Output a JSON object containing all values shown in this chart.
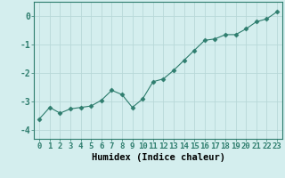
{
  "x": [
    0,
    1,
    2,
    3,
    4,
    5,
    6,
    7,
    8,
    9,
    10,
    11,
    12,
    13,
    14,
    15,
    16,
    17,
    18,
    19,
    20,
    21,
    22,
    23
  ],
  "y": [
    -3.6,
    -3.2,
    -3.4,
    -3.25,
    -3.2,
    -3.15,
    -2.95,
    -2.6,
    -2.75,
    -3.2,
    -2.9,
    -2.3,
    -2.2,
    -1.9,
    -1.55,
    -1.2,
    -0.85,
    -0.8,
    -0.65,
    -0.65,
    -0.45,
    -0.2,
    -0.1,
    0.15
  ],
  "line_color": "#2e7d6e",
  "marker": "D",
  "markersize": 2.5,
  "linewidth": 0.8,
  "xlabel": "Humidex (Indice chaleur)",
  "xlim": [
    -0.5,
    23.5
  ],
  "ylim": [
    -4.3,
    0.5
  ],
  "yticks": [
    0,
    -1,
    -2,
    -3,
    -4
  ],
  "xticks": [
    0,
    1,
    2,
    3,
    4,
    5,
    6,
    7,
    8,
    9,
    10,
    11,
    12,
    13,
    14,
    15,
    16,
    17,
    18,
    19,
    20,
    21,
    22,
    23
  ],
  "bg_color": "#d4eeee",
  "grid_color": "#b8d8d8",
  "tick_label_fontsize": 6.5,
  "xlabel_fontsize": 7.5,
  "ytick_label_fontsize": 7
}
